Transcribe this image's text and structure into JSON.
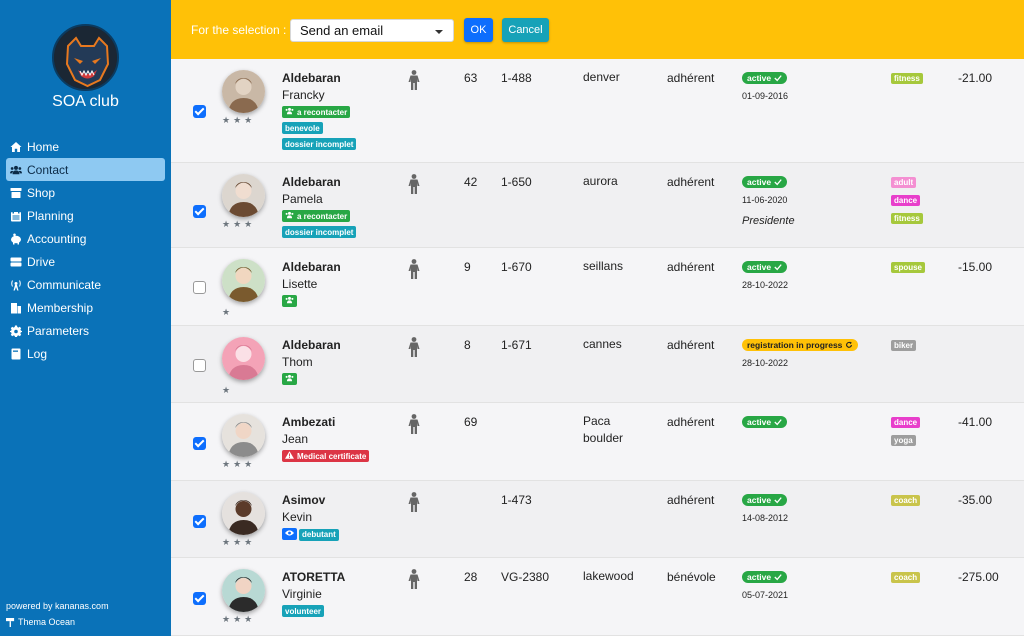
{
  "app": {
    "club_name": "SOA club",
    "powered_by": "powered by kananas.com",
    "theme": "Thema Ocean"
  },
  "sidebar": {
    "items": [
      {
        "label": "Home",
        "icon": "home-icon"
      },
      {
        "label": "Contact",
        "icon": "users-icon",
        "active": true
      },
      {
        "label": "Shop",
        "icon": "store-icon"
      },
      {
        "label": "Planning",
        "icon": "calendar-icon"
      },
      {
        "label": "Accounting",
        "icon": "piggy-bank-icon"
      },
      {
        "label": "Drive",
        "icon": "drive-icon"
      },
      {
        "label": "Communicate",
        "icon": "broadcast-icon"
      },
      {
        "label": "Membership",
        "icon": "membership-icon"
      },
      {
        "label": "Parameters",
        "icon": "gear-icon"
      },
      {
        "label": "Log",
        "icon": "book-icon"
      }
    ]
  },
  "toolbar": {
    "selection_label": "For the selection :",
    "action_selected": "Send an email",
    "ok_label": "OK",
    "cancel_label": "Cancel"
  },
  "members": [
    {
      "checked": true,
      "rating": "★★★",
      "last": "Aldebaran",
      "first": "Francky",
      "tags": [
        {
          "label": "a recontacter",
          "color": "green",
          "icon": true
        },
        {
          "label": "benevole",
          "color": "teal"
        },
        {
          "label": "dossier incomplet",
          "color": "teal"
        }
      ],
      "age": "63",
      "code": "1-488",
      "city": "denver",
      "type": "adhérent",
      "status": "active",
      "date": "01-09-2016",
      "role": "",
      "activities": [
        {
          "label": "fitness",
          "color": "#a6c83c"
        }
      ],
      "amount": "-21.00"
    },
    {
      "checked": true,
      "rating": "★★★",
      "last": "Aldebaran",
      "first": "Pamela",
      "tags": [
        {
          "label": "a recontacter",
          "color": "green",
          "icon": true
        },
        {
          "label": "dossier incomplet",
          "color": "teal"
        }
      ],
      "age": "42",
      "code": "1-650",
      "city": "aurora",
      "type": "adhérent",
      "status": "active",
      "date": "11-06-2020",
      "role": "Presidente",
      "activities": [
        {
          "label": "adult",
          "color": "#f48fd2"
        },
        {
          "label": "dance",
          "color": "#e83ecb"
        },
        {
          "label": "fitness",
          "color": "#a6c83c"
        }
      ],
      "amount": ""
    },
    {
      "checked": false,
      "rating": "★",
      "last": "Aldebaran",
      "first": "Lisette",
      "tags": [
        {
          "label": "",
          "color": "green",
          "icon": true
        }
      ],
      "age": "9",
      "code": "1-670",
      "city": "seillans",
      "type": "adhérent",
      "status": "active",
      "date": "28-10-2022",
      "role": "",
      "activities": [
        {
          "label": "spouse",
          "color": "#a6c83c"
        }
      ],
      "amount": "-15.00"
    },
    {
      "checked": false,
      "rating": "★",
      "last": "Aldebaran",
      "first": "Thom",
      "tags": [
        {
          "label": "",
          "color": "green",
          "icon": true
        }
      ],
      "age": "8",
      "code": "1-671",
      "city": "cannes",
      "type": "adhérent",
      "status": "registration in progress",
      "date": "28-10-2022",
      "role": "",
      "activities": [
        {
          "label": "biker",
          "color": "#9e9e9e"
        }
      ],
      "amount": ""
    },
    {
      "checked": true,
      "rating": "★★★",
      "last": "Ambezati",
      "first": "Jean",
      "tags": [
        {
          "label": "Medical certificate",
          "color": "red",
          "warn": true
        }
      ],
      "age": "69",
      "code": "",
      "city": "Paca boulder",
      "type": "adhérent",
      "status": "active",
      "date": "",
      "role": "",
      "activities": [
        {
          "label": "dance",
          "color": "#e83ecb"
        },
        {
          "label": "yoga",
          "color": "#9e9e9e"
        }
      ],
      "amount": "-41.00"
    },
    {
      "checked": true,
      "rating": "★★★",
      "last": "Asimov",
      "first": "Kevin",
      "tags": [
        {
          "label": "",
          "color": "blue",
          "eye": true
        },
        {
          "label": "debutant",
          "color": "teal"
        }
      ],
      "age": "",
      "code": "1-473",
      "city": "",
      "type": "adhérent",
      "status": "active",
      "date": "14-08-2012",
      "role": "",
      "activities": [
        {
          "label": "coach",
          "color": "#c9c44b"
        }
      ],
      "amount": "-35.00"
    },
    {
      "checked": true,
      "rating": "★★★",
      "last": "ATORETTA",
      "first": "Virginie",
      "tags": [
        {
          "label": "volunteer",
          "color": "teal"
        }
      ],
      "age": "28",
      "code": "VG-2380",
      "city": "lakewood",
      "type": "bénévole",
      "status": "active",
      "date": "05-07-2021",
      "role": "",
      "activities": [
        {
          "label": "coach",
          "color": "#c9c44b"
        }
      ],
      "amount": "-275.00"
    }
  ]
}
